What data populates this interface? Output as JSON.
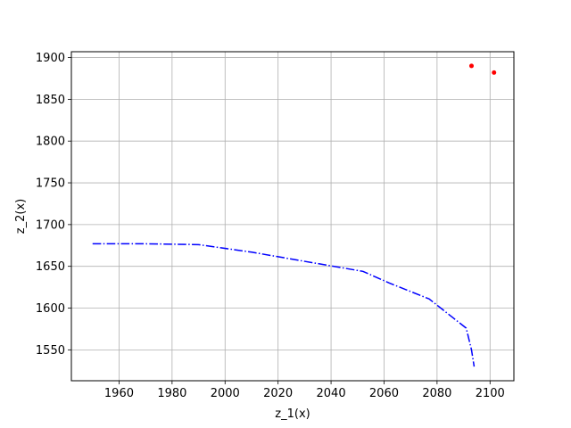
{
  "chart_data": {
    "type": "line",
    "title": "",
    "xlabel": "z_1(x)",
    "ylabel": "z_2(x)",
    "xlim": [
      1942,
      2109
    ],
    "ylim": [
      1513,
      1907
    ],
    "xticks": [
      1960,
      1980,
      2000,
      2020,
      2040,
      2060,
      2080,
      2100
    ],
    "yticks": [
      1550,
      1600,
      1650,
      1700,
      1750,
      1800,
      1850,
      1900
    ],
    "grid": true,
    "series": [
      {
        "kind": "line",
        "color": "#0000ff",
        "linestyle": "dashdot",
        "x": [
          1950,
          1970,
          1990,
          2010,
          2030,
          2052,
          2062,
          2077,
          2091,
          2093,
          2094
        ],
        "y": [
          1677,
          1677,
          1676,
          1667,
          1656,
          1644,
          1630,
          1611,
          1576,
          1550,
          1530
        ]
      },
      {
        "kind": "scatter",
        "color": "#ff0000",
        "x": [
          2093,
          2101.5
        ],
        "y": [
          1890,
          1882
        ]
      }
    ]
  }
}
